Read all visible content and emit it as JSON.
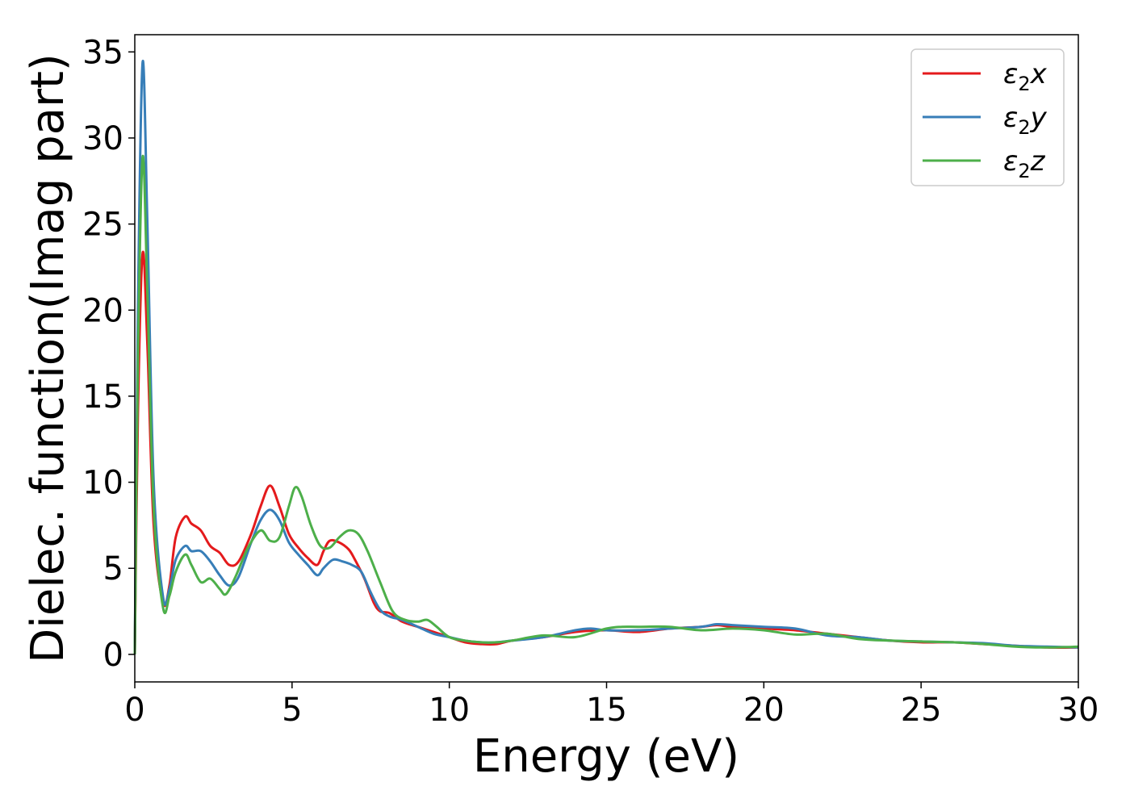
{
  "chart_data": {
    "type": "line",
    "xlabel": "Energy (eV)",
    "ylabel": "Dielec. function(Imag part)",
    "xlim": [
      0,
      30
    ],
    "ylim": [
      -1.6,
      36
    ],
    "xticks": [
      0,
      5,
      10,
      15,
      20,
      25,
      30
    ],
    "yticks": [
      0,
      5,
      10,
      15,
      20,
      25,
      30,
      35
    ],
    "grid": false,
    "legend_position": "top-right",
    "series": [
      {
        "key": "x",
        "name": "ε2x",
        "legend": {
          "symbol": "ε",
          "sub": "2",
          "var": "x"
        },
        "color": "#e41a1c",
        "points": [
          [
            0,
            0
          ],
          [
            0.1,
            14
          ],
          [
            0.25,
            23.3
          ],
          [
            0.4,
            18
          ],
          [
            0.6,
            7.5
          ],
          [
            0.9,
            3.0
          ],
          [
            1.1,
            4.0
          ],
          [
            1.3,
            6.8
          ],
          [
            1.6,
            8.0
          ],
          [
            1.8,
            7.6
          ],
          [
            2.1,
            7.2
          ],
          [
            2.4,
            6.3
          ],
          [
            2.7,
            5.9
          ],
          [
            3.0,
            5.2
          ],
          [
            3.3,
            5.4
          ],
          [
            3.7,
            7.0
          ],
          [
            4.0,
            8.6
          ],
          [
            4.3,
            9.8
          ],
          [
            4.6,
            8.6
          ],
          [
            4.9,
            7.0
          ],
          [
            5.2,
            6.2
          ],
          [
            5.5,
            5.6
          ],
          [
            5.8,
            5.2
          ],
          [
            6.0,
            6.0
          ],
          [
            6.2,
            6.6
          ],
          [
            6.5,
            6.5
          ],
          [
            6.8,
            6.1
          ],
          [
            7.0,
            5.5
          ],
          [
            7.3,
            4.4
          ],
          [
            7.6,
            3.0
          ],
          [
            7.8,
            2.5
          ],
          [
            8.1,
            2.4
          ],
          [
            8.5,
            1.9
          ],
          [
            9.0,
            1.6
          ],
          [
            9.5,
            1.3
          ],
          [
            10.0,
            1.0
          ],
          [
            10.5,
            0.7
          ],
          [
            11.0,
            0.6
          ],
          [
            11.5,
            0.6
          ],
          [
            12.0,
            0.8
          ],
          [
            13.0,
            1.0
          ],
          [
            14.0,
            1.3
          ],
          [
            15.0,
            1.4
          ],
          [
            16.0,
            1.3
          ],
          [
            17.0,
            1.5
          ],
          [
            18.0,
            1.6
          ],
          [
            18.5,
            1.7
          ],
          [
            19.0,
            1.6
          ],
          [
            20.0,
            1.5
          ],
          [
            21.0,
            1.4
          ],
          [
            22.0,
            1.2
          ],
          [
            23.0,
            1.0
          ],
          [
            24.0,
            0.8
          ],
          [
            25.0,
            0.7
          ],
          [
            26.0,
            0.7
          ],
          [
            27.0,
            0.6
          ],
          [
            28.0,
            0.5
          ],
          [
            29.0,
            0.4
          ],
          [
            30.0,
            0.4
          ]
        ]
      },
      {
        "key": "y",
        "name": "ε2y",
        "legend": {
          "symbol": "ε",
          "sub": "2",
          "var": "y"
        },
        "color": "#377eb8",
        "points": [
          [
            0,
            0
          ],
          [
            0.1,
            20
          ],
          [
            0.25,
            34.4
          ],
          [
            0.4,
            25
          ],
          [
            0.6,
            10
          ],
          [
            0.9,
            3.3
          ],
          [
            1.1,
            3.8
          ],
          [
            1.3,
            5.5
          ],
          [
            1.6,
            6.3
          ],
          [
            1.8,
            6.0
          ],
          [
            2.1,
            6.0
          ],
          [
            2.4,
            5.4
          ],
          [
            2.7,
            4.6
          ],
          [
            3.0,
            4.0
          ],
          [
            3.3,
            4.5
          ],
          [
            3.7,
            6.5
          ],
          [
            4.0,
            7.8
          ],
          [
            4.3,
            8.4
          ],
          [
            4.6,
            7.8
          ],
          [
            4.9,
            6.5
          ],
          [
            5.2,
            5.8
          ],
          [
            5.5,
            5.2
          ],
          [
            5.8,
            4.6
          ],
          [
            6.0,
            5.0
          ],
          [
            6.3,
            5.5
          ],
          [
            6.6,
            5.4
          ],
          [
            6.9,
            5.2
          ],
          [
            7.2,
            4.8
          ],
          [
            7.5,
            3.6
          ],
          [
            7.8,
            2.6
          ],
          [
            8.1,
            2.2
          ],
          [
            8.5,
            2.0
          ],
          [
            9.0,
            1.6
          ],
          [
            9.5,
            1.2
          ],
          [
            10.0,
            1.0
          ],
          [
            10.5,
            0.8
          ],
          [
            11.0,
            0.7
          ],
          [
            11.5,
            0.7
          ],
          [
            12.0,
            0.8
          ],
          [
            13.0,
            1.0
          ],
          [
            14.0,
            1.4
          ],
          [
            14.5,
            1.5
          ],
          [
            15.0,
            1.4
          ],
          [
            16.0,
            1.4
          ],
          [
            17.0,
            1.5
          ],
          [
            18.0,
            1.6
          ],
          [
            18.5,
            1.75
          ],
          [
            19.0,
            1.7
          ],
          [
            20.0,
            1.6
          ],
          [
            21.0,
            1.5
          ],
          [
            22.0,
            1.1
          ],
          [
            23.0,
            1.0
          ],
          [
            24.0,
            0.8
          ],
          [
            25.0,
            0.75
          ],
          [
            26.0,
            0.7
          ],
          [
            27.0,
            0.65
          ],
          [
            28.0,
            0.5
          ],
          [
            29.0,
            0.45
          ],
          [
            30.0,
            0.4
          ]
        ]
      },
      {
        "key": "z",
        "name": "ε2z",
        "legend": {
          "symbol": "ε",
          "sub": "2",
          "var": "z"
        },
        "color": "#4daf4a",
        "points": [
          [
            0,
            0
          ],
          [
            0.1,
            17
          ],
          [
            0.25,
            28.9
          ],
          [
            0.4,
            21
          ],
          [
            0.6,
            8.5
          ],
          [
            0.9,
            2.7
          ],
          [
            1.1,
            3.4
          ],
          [
            1.3,
            4.8
          ],
          [
            1.6,
            5.8
          ],
          [
            1.8,
            5.2
          ],
          [
            2.1,
            4.2
          ],
          [
            2.4,
            4.4
          ],
          [
            2.7,
            3.8
          ],
          [
            2.9,
            3.5
          ],
          [
            3.2,
            4.5
          ],
          [
            3.6,
            6.2
          ],
          [
            4.0,
            7.2
          ],
          [
            4.3,
            6.6
          ],
          [
            4.6,
            6.8
          ],
          [
            4.9,
            8.6
          ],
          [
            5.1,
            9.7
          ],
          [
            5.3,
            9.2
          ],
          [
            5.6,
            7.5
          ],
          [
            5.9,
            6.3
          ],
          [
            6.2,
            6.2
          ],
          [
            6.5,
            6.8
          ],
          [
            6.8,
            7.2
          ],
          [
            7.1,
            7.0
          ],
          [
            7.4,
            6.0
          ],
          [
            7.8,
            4.2
          ],
          [
            8.2,
            2.5
          ],
          [
            8.6,
            2.0
          ],
          [
            9.0,
            1.9
          ],
          [
            9.3,
            2.0
          ],
          [
            9.6,
            1.6
          ],
          [
            10.0,
            1.0
          ],
          [
            10.5,
            0.8
          ],
          [
            11.0,
            0.7
          ],
          [
            11.5,
            0.7
          ],
          [
            12.0,
            0.8
          ],
          [
            13.0,
            1.1
          ],
          [
            14.0,
            1.0
          ],
          [
            15.0,
            1.5
          ],
          [
            15.5,
            1.6
          ],
          [
            16.0,
            1.6
          ],
          [
            17.0,
            1.6
          ],
          [
            18.0,
            1.4
          ],
          [
            19.0,
            1.5
          ],
          [
            20.0,
            1.4
          ],
          [
            21.0,
            1.15
          ],
          [
            22.0,
            1.2
          ],
          [
            23.0,
            0.9
          ],
          [
            24.0,
            0.8
          ],
          [
            25.0,
            0.75
          ],
          [
            26.0,
            0.7
          ],
          [
            27.0,
            0.6
          ],
          [
            28.0,
            0.45
          ],
          [
            29.0,
            0.4
          ],
          [
            30.0,
            0.45
          ]
        ]
      }
    ]
  }
}
